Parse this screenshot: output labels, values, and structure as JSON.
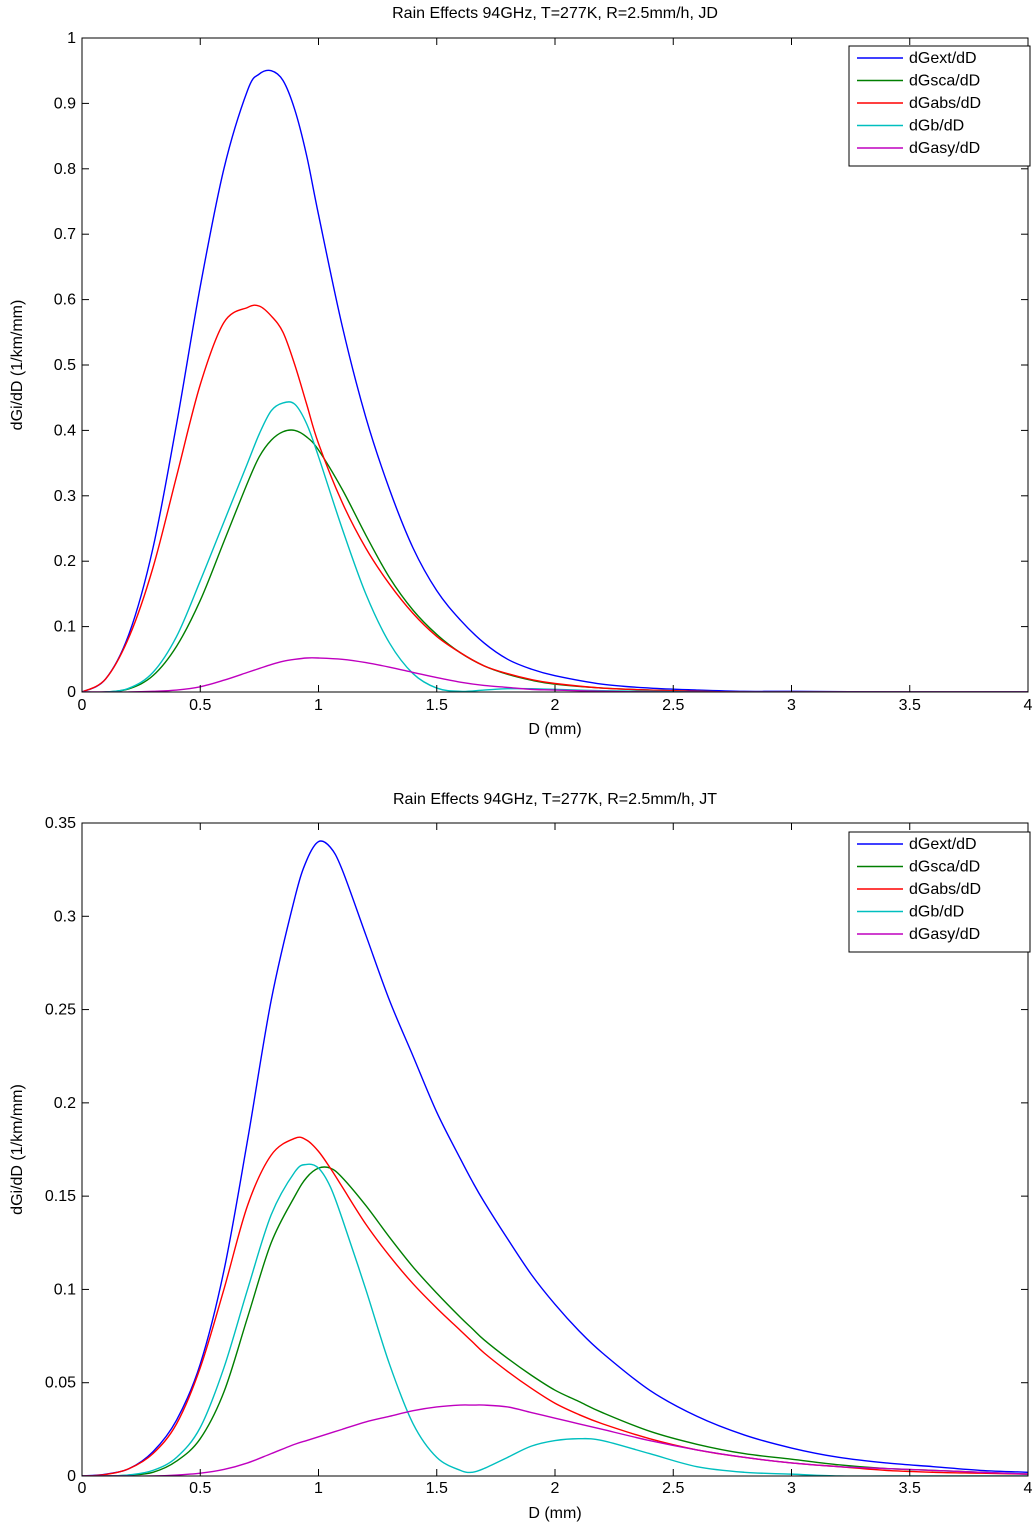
{
  "chart_data": [
    {
      "type": "line",
      "title": "Rain Effects 94GHz, T=277K, R=2.5mm/h, JD",
      "xlabel": "D (mm)",
      "ylabel": "dGi/dD (1/km/mm)",
      "xlim": [
        0,
        4
      ],
      "ylim": [
        0,
        1
      ],
      "xticks": [
        "0",
        "0.5",
        "1",
        "1.5",
        "2",
        "2.5",
        "3",
        "3.5",
        "4"
      ],
      "yticks": [
        "0",
        "0.1",
        "0.2",
        "0.3",
        "0.4",
        "0.5",
        "0.6",
        "0.7",
        "0.8",
        "0.9",
        "1"
      ],
      "grid": false,
      "legend_position": "top-right",
      "x": [
        0,
        0.1,
        0.2,
        0.3,
        0.4,
        0.5,
        0.6,
        0.7,
        0.75,
        0.8,
        0.85,
        0.9,
        0.95,
        1.0,
        1.1,
        1.2,
        1.3,
        1.4,
        1.5,
        1.6,
        1.7,
        1.8,
        1.9,
        2.0,
        2.2,
        2.4,
        2.6,
        2.8,
        3.0,
        3.5,
        4.0
      ],
      "series": [
        {
          "name": "dGext/dD",
          "color": "#0000ff",
          "values": [
            0,
            0.02,
            0.09,
            0.22,
            0.41,
            0.62,
            0.8,
            0.92,
            0.945,
            0.95,
            0.935,
            0.89,
            0.82,
            0.73,
            0.56,
            0.42,
            0.31,
            0.22,
            0.155,
            0.11,
            0.075,
            0.05,
            0.035,
            0.025,
            0.012,
            0.006,
            0.003,
            0.001,
            0.001,
            0.0,
            0.0
          ]
        },
        {
          "name": "dGsca/dD",
          "color": "#007f00",
          "values": [
            0,
            0.0,
            0.005,
            0.025,
            0.07,
            0.14,
            0.23,
            0.32,
            0.36,
            0.385,
            0.398,
            0.4,
            0.39,
            0.37,
            0.31,
            0.24,
            0.175,
            0.125,
            0.088,
            0.06,
            0.04,
            0.027,
            0.018,
            0.012,
            0.006,
            0.003,
            0.001,
            0.0,
            0.0,
            0.0,
            0.0
          ]
        },
        {
          "name": "dGabs/dD",
          "color": "#ff0000",
          "values": [
            0,
            0.02,
            0.085,
            0.19,
            0.33,
            0.47,
            0.565,
            0.588,
            0.59,
            0.575,
            0.55,
            0.5,
            0.44,
            0.38,
            0.29,
            0.22,
            0.165,
            0.12,
            0.085,
            0.06,
            0.04,
            0.028,
            0.019,
            0.013,
            0.006,
            0.003,
            0.001,
            0.0,
            0.0,
            0.0,
            0.0
          ]
        },
        {
          "name": "dGb/dD",
          "color": "#00bfbf",
          "values": [
            0,
            0.0,
            0.006,
            0.03,
            0.085,
            0.17,
            0.26,
            0.35,
            0.395,
            0.43,
            0.442,
            0.44,
            0.41,
            0.36,
            0.25,
            0.15,
            0.075,
            0.028,
            0.006,
            0.001,
            0.003,
            0.005,
            0.005,
            0.004,
            0.002,
            0.001,
            0.0,
            0.0,
            0.0,
            0.0,
            0.0
          ]
        },
        {
          "name": "dGasy/dD",
          "color": "#bf00bf",
          "values": [
            0,
            0.0,
            0.0,
            0.001,
            0.003,
            0.008,
            0.018,
            0.03,
            0.036,
            0.042,
            0.047,
            0.05,
            0.052,
            0.052,
            0.05,
            0.045,
            0.038,
            0.03,
            0.022,
            0.015,
            0.01,
            0.007,
            0.004,
            0.003,
            0.001,
            0.0,
            0.0,
            0.0,
            0.0,
            0.0,
            0.0
          ]
        }
      ]
    },
    {
      "type": "line",
      "title": "Rain Effects 94GHz, T=277K, R=2.5mm/h, JT",
      "xlabel": "D (mm)",
      "ylabel": "dGi/dD (1/km/mm)",
      "xlim": [
        0,
        4
      ],
      "ylim": [
        0,
        0.35
      ],
      "xticks": [
        "0",
        "0.5",
        "1",
        "1.5",
        "2",
        "2.5",
        "3",
        "3.5",
        "4"
      ],
      "yticks": [
        "0",
        "0.05",
        "0.1",
        "0.15",
        "0.2",
        "0.25",
        "0.3",
        "0.35"
      ],
      "grid": false,
      "legend_position": "top-right",
      "x": [
        0,
        0.1,
        0.2,
        0.3,
        0.4,
        0.5,
        0.6,
        0.7,
        0.8,
        0.9,
        0.95,
        1.0,
        1.05,
        1.1,
        1.2,
        1.3,
        1.4,
        1.5,
        1.6,
        1.65,
        1.7,
        1.8,
        1.9,
        2.0,
        2.1,
        2.2,
        2.4,
        2.6,
        2.8,
        3.0,
        3.2,
        3.4,
        3.6,
        3.8,
        4.0
      ],
      "series": [
        {
          "name": "dGext/dD",
          "color": "#0000ff",
          "values": [
            0,
            0.001,
            0.004,
            0.013,
            0.03,
            0.06,
            0.11,
            0.18,
            0.255,
            0.31,
            0.33,
            0.34,
            0.337,
            0.325,
            0.29,
            0.255,
            0.225,
            0.195,
            0.17,
            0.158,
            0.147,
            0.127,
            0.108,
            0.092,
            0.078,
            0.066,
            0.046,
            0.032,
            0.022,
            0.015,
            0.01,
            0.007,
            0.005,
            0.003,
            0.002
          ]
        },
        {
          "name": "dGsca/dD",
          "color": "#007f00",
          "values": [
            0,
            0.0,
            0.0005,
            0.002,
            0.008,
            0.02,
            0.045,
            0.085,
            0.125,
            0.15,
            0.16,
            0.165,
            0.165,
            0.16,
            0.145,
            0.128,
            0.112,
            0.098,
            0.085,
            0.079,
            0.073,
            0.063,
            0.054,
            0.046,
            0.04,
            0.034,
            0.024,
            0.017,
            0.012,
            0.009,
            0.006,
            0.004,
            0.003,
            0.002,
            0.001
          ]
        },
        {
          "name": "dGabs/dD",
          "color": "#ff0000",
          "values": [
            0,
            0.0008,
            0.004,
            0.012,
            0.028,
            0.058,
            0.1,
            0.145,
            0.172,
            0.181,
            0.18,
            0.174,
            0.165,
            0.155,
            0.135,
            0.118,
            0.103,
            0.09,
            0.078,
            0.072,
            0.066,
            0.056,
            0.047,
            0.039,
            0.033,
            0.028,
            0.02,
            0.014,
            0.01,
            0.007,
            0.005,
            0.003,
            0.002,
            0.0015,
            0.001
          ]
        },
        {
          "name": "dGb/dD",
          "color": "#00bfbf",
          "values": [
            0,
            0.0,
            0.0006,
            0.003,
            0.01,
            0.026,
            0.058,
            0.1,
            0.14,
            0.163,
            0.167,
            0.165,
            0.155,
            0.138,
            0.1,
            0.06,
            0.028,
            0.01,
            0.003,
            0.002,
            0.004,
            0.01,
            0.016,
            0.019,
            0.02,
            0.019,
            0.012,
            0.005,
            0.002,
            0.001,
            0.0,
            0.0,
            0.0,
            0.0,
            0.0
          ]
        },
        {
          "name": "dGasy/dD",
          "color": "#bf00bf",
          "values": [
            0,
            0.0,
            0.0,
            0.0,
            0.0005,
            0.0015,
            0.0035,
            0.007,
            0.012,
            0.017,
            0.019,
            0.021,
            0.023,
            0.025,
            0.029,
            0.032,
            0.035,
            0.037,
            0.038,
            0.038,
            0.038,
            0.037,
            0.034,
            0.031,
            0.028,
            0.025,
            0.019,
            0.014,
            0.01,
            0.007,
            0.005,
            0.004,
            0.003,
            0.002,
            0.001
          ]
        }
      ]
    }
  ]
}
